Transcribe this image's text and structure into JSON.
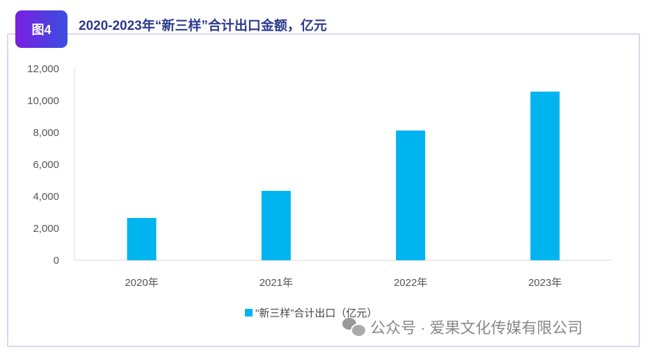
{
  "header": {
    "badge": "图4",
    "title": "2020-2023年“新三样”合计出口金额，亿元"
  },
  "chart_data": {
    "type": "bar",
    "title": "2020-2023年“新三样”合计出口金额，亿元",
    "categories": [
      "2020年",
      "2021年",
      "2022年",
      "2023年"
    ],
    "series": [
      {
        "name": "\"新三样”合计出口（亿元）",
        "values": [
          2650,
          4350,
          8130,
          10565
        ],
        "color": "#00b4ef"
      }
    ],
    "ylim": [
      0,
      12000
    ],
    "yticks": [
      0,
      2000,
      4000,
      6000,
      8000,
      10000,
      12000
    ],
    "ytick_labels": [
      "0",
      "2,000",
      "4,000",
      "6,000",
      "8,000",
      "10,000",
      "12,000"
    ],
    "xlabel": "",
    "ylabel": "",
    "grid": false,
    "legend_position": "bottom"
  },
  "watermark": {
    "text": "公众号 · 爱果文化传媒有限公司"
  }
}
